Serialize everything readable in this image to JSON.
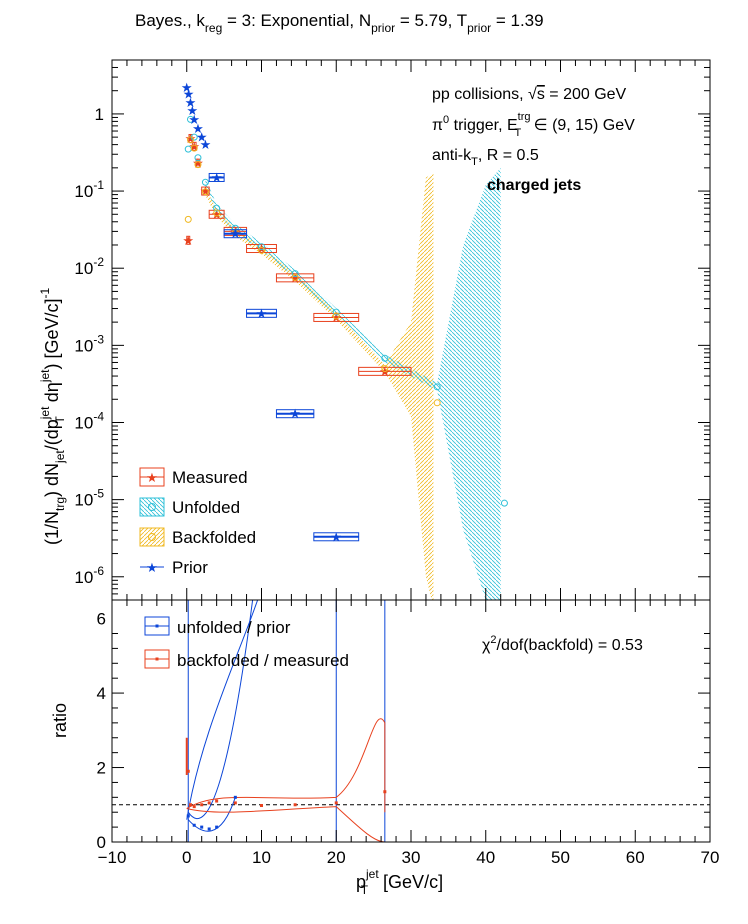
{
  "title": {
    "main": "Bayes., k",
    "k_sub": "reg",
    "mid1": " = 3: Exponential, N",
    "n_sub": "prior",
    "mid2": " = 5.79, T",
    "t_sub": "prior",
    "tail": " = 1.39"
  },
  "annotations": {
    "line1_a": "pp collisions, ",
    "line1_sqrt": "√",
    "line1_s": "s",
    "line1_b": " = 200 GeV",
    "line2_pi": "π",
    "line2_sup": "0",
    "line2_a": " trigger, E",
    "line2_esup": "trg",
    "line2_esub": "T",
    "line2_b": " ∈ (9, 15) GeV",
    "line3_a": "anti-k",
    "line3_sub": "T",
    "line3_b": ", R = 0.5",
    "line4": "charged jets",
    "chi2_a": "χ",
    "chi2_sup": "2",
    "chi2_b": "/dof(backfold) = 0.53"
  },
  "axis_labels": {
    "y_top_a": "(1/N",
    "y_top_trg": "trg",
    "y_top_b": ") dN",
    "y_top_jet": "jet",
    "y_top_c": "/(dp",
    "y_top_T": "T",
    "y_top_jet2": "jet",
    "y_top_d": " dη",
    "y_top_jet3": "jet",
    "y_top_e": ") [GeV/c]",
    "y_top_m1": "-1",
    "y_bottom": "ratio",
    "x_a": "p",
    "x_sub": "T",
    "x_sup": "jet",
    "x_b": " [GeV/c]"
  },
  "legend_top": [
    "Measured",
    "Unfolded",
    "Backfolded",
    "Prior"
  ],
  "legend_bottom": [
    "unfolded / prior",
    "backfolded / measured"
  ],
  "colors": {
    "measured": "#e8411e",
    "unfolded": "#2ec0d8",
    "backfolded": "#f0b820",
    "prior": "#0c46d8",
    "frame": "#000000",
    "pad_border": "#8b0000"
  },
  "chart_data": [
    {
      "type": "scatter",
      "yscale": "log",
      "xlim": [
        -10,
        70
      ],
      "ylim": [
        5e-07,
        5
      ],
      "y_ticks": [
        "10^-6",
        "10^-5",
        "10^-4",
        "10^-3",
        "10^-2",
        "10^-1",
        "1"
      ],
      "series": [
        {
          "name": "Measured",
          "marker": "star",
          "x": [
            0.2,
            0.5,
            1.0,
            1.5,
            2.5,
            4.0,
            6.5,
            10.0,
            14.5,
            20.0,
            26.5
          ],
          "y": [
            0.023,
            0.48,
            0.38,
            0.23,
            0.1,
            0.05,
            0.03,
            0.018,
            0.0075,
            0.0023,
            0.00046
          ],
          "xerr": [
            0.2,
            0.2,
            0.25,
            0.25,
            0.5,
            1.0,
            1.5,
            2.0,
            2.5,
            3.0,
            3.5
          ]
        },
        {
          "name": "Unfolded",
          "marker": "open-circle",
          "x": [
            0.2,
            0.5,
            1.0,
            1.5,
            2.5,
            4.0,
            6.5,
            10.0,
            14.5,
            20.0,
            26.5,
            33.5,
            42.5
          ],
          "y": [
            0.35,
            0.85,
            0.5,
            0.27,
            0.13,
            0.06,
            0.033,
            0.019,
            0.0085,
            0.0027,
            0.00068,
            0.00029,
            9e-06
          ]
        },
        {
          "name": "Backfolded",
          "marker": "open-circle",
          "x": [
            0.2,
            0.5,
            1.0,
            1.5,
            2.5,
            4.0,
            6.5,
            10.0,
            14.5,
            20.0,
            26.5,
            33.5
          ],
          "y": [
            0.043,
            0.46,
            0.36,
            0.22,
            0.098,
            0.052,
            0.029,
            0.017,
            0.0076,
            0.0024,
            0.0005,
            0.00018
          ]
        },
        {
          "name": "Prior",
          "marker": "star",
          "x": [
            0.0,
            0.25,
            0.5,
            0.75,
            1.0,
            1.5,
            2.0,
            2.5,
            4.0,
            6.5,
            10.0,
            14.5,
            20.0
          ],
          "y": [
            2.2,
            1.8,
            1.4,
            1.1,
            0.85,
            0.65,
            0.5,
            0.4,
            0.15,
            0.028,
            0.0026,
            0.00013,
            3.3e-06
          ],
          "xerr": [
            0,
            0,
            0,
            0,
            0,
            0,
            0,
            0,
            1.0,
            1.5,
            2.0,
            2.5,
            3.0
          ]
        }
      ]
    },
    {
      "type": "line",
      "xlim": [
        -10,
        70
      ],
      "ylim": [
        0,
        6.5
      ],
      "y_ticks": [
        0,
        2,
        4,
        6
      ],
      "x_ticks": [
        -10,
        0,
        10,
        20,
        30,
        40,
        50,
        60,
        70
      ],
      "reference_line": 1,
      "series": [
        {
          "name": "unfolded / prior",
          "x": [
            0.2,
            1,
            2,
            3,
            4,
            6.5
          ],
          "y": [
            0.7,
            0.45,
            0.4,
            0.35,
            0.4,
            1.2
          ]
        },
        {
          "name": "backfolded / measured",
          "x": [
            0.2,
            0.5,
            1,
            2,
            3,
            4,
            6.5,
            10,
            14.5,
            20,
            26.5
          ],
          "y": [
            1.9,
            1.0,
            0.95,
            1.0,
            1.05,
            1.1,
            1.05,
            0.98,
            1.0,
            1.05,
            1.35
          ]
        }
      ]
    }
  ]
}
